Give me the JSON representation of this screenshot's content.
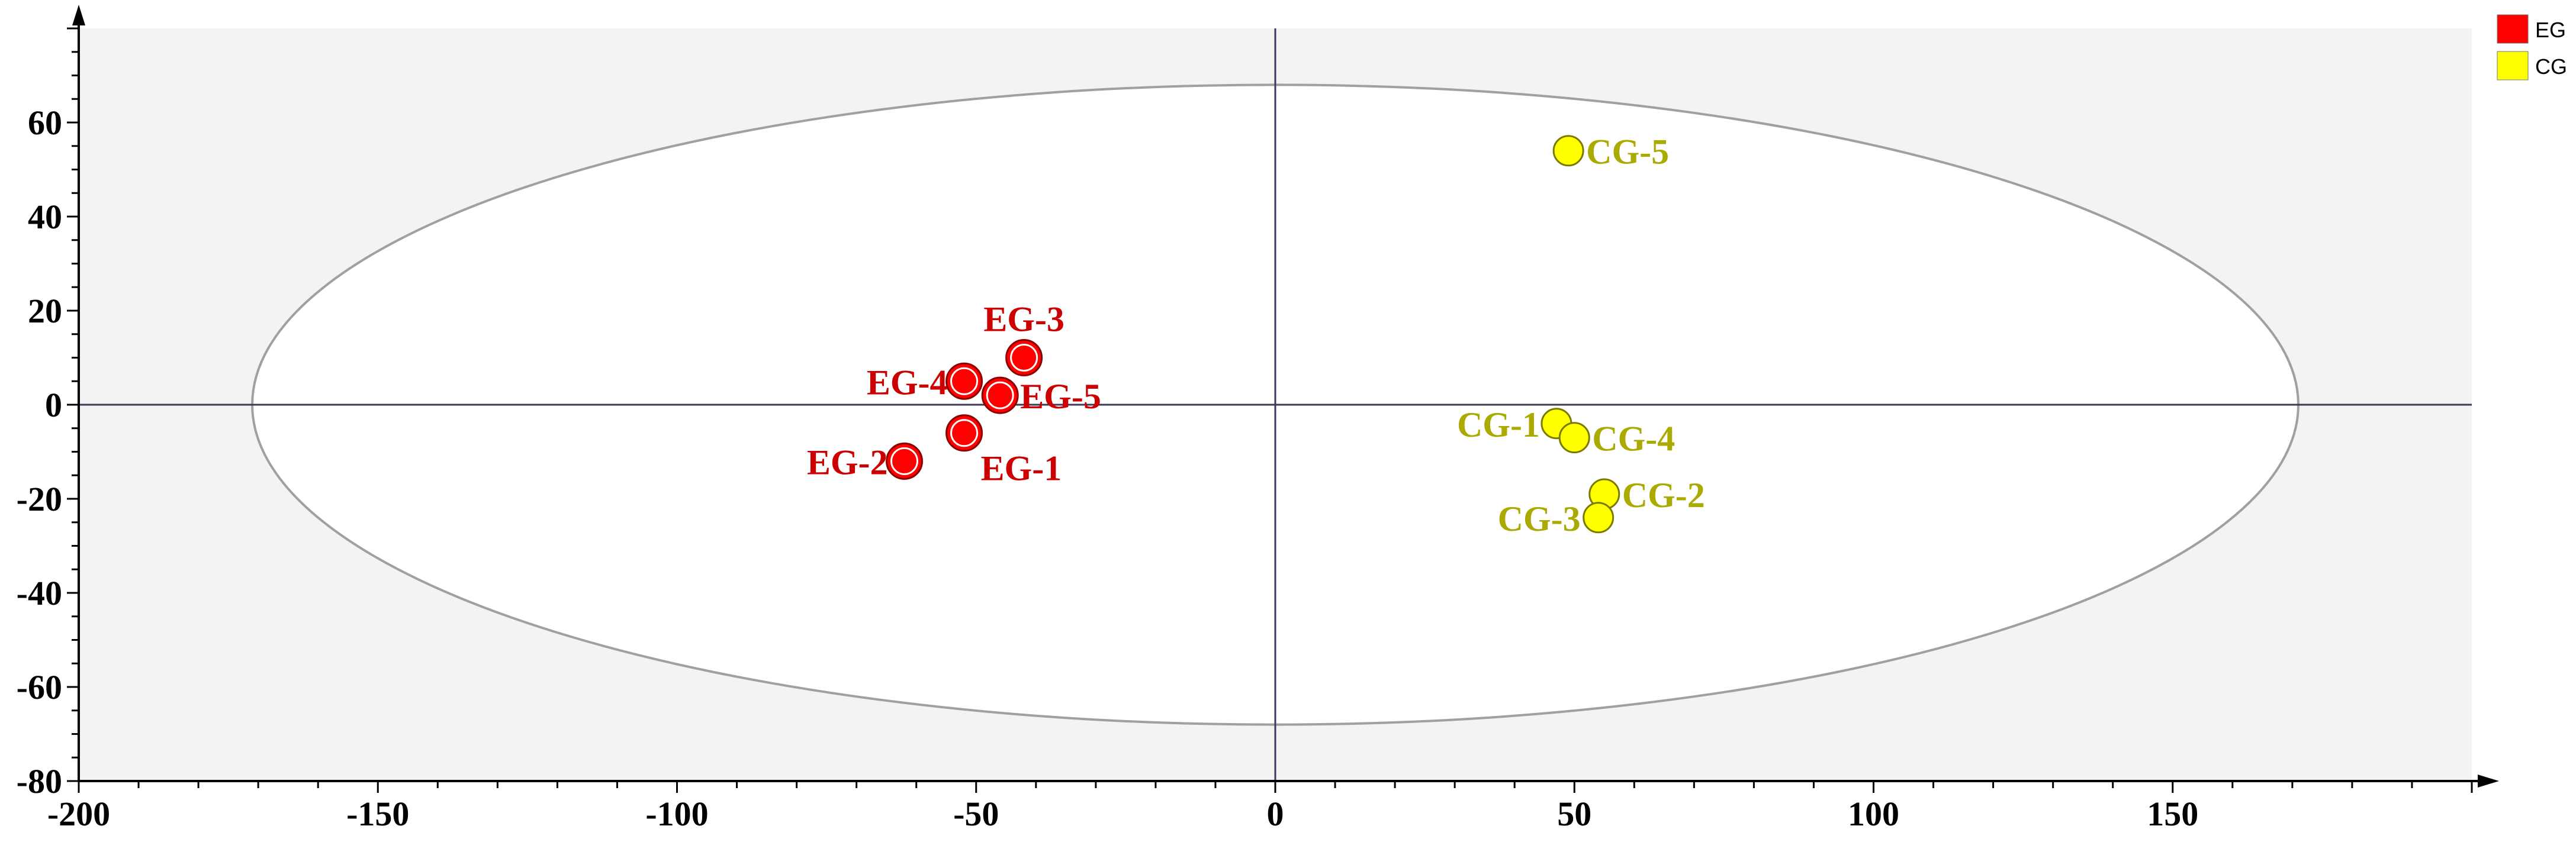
{
  "chart_data": {
    "type": "scatter",
    "title": "",
    "xlabel": "",
    "ylabel": "",
    "xlim": [
      -200,
      200
    ],
    "ylim": [
      -80,
      80
    ],
    "x_ticks": [
      -200,
      -150,
      -100,
      -50,
      0,
      50,
      100,
      150
    ],
    "y_ticks": [
      -80,
      -60,
      -40,
      -20,
      0,
      20,
      40,
      60
    ],
    "grid": false,
    "legend_position": "top-right",
    "confidence_ellipse": {
      "center": [
        0,
        0
      ],
      "semi_axis_x": 171,
      "semi_axis_y": 68
    },
    "series": [
      {
        "name": "EG",
        "color": "#ff0000",
        "label_color": "#cc0000",
        "points": [
          {
            "label": "EG-1",
            "x": -52,
            "y": -6
          },
          {
            "label": "EG-2",
            "x": -62,
            "y": -12
          },
          {
            "label": "EG-3",
            "x": -42,
            "y": 10
          },
          {
            "label": "EG-4",
            "x": -52,
            "y": 5
          },
          {
            "label": "EG-5",
            "x": -46,
            "y": 2
          }
        ]
      },
      {
        "name": "CG",
        "color": "#ffff00",
        "label_color": "#aaaa00",
        "points": [
          {
            "label": "CG-1",
            "x": 47,
            "y": -4
          },
          {
            "label": "CG-2",
            "x": 55,
            "y": -19
          },
          {
            "label": "CG-3",
            "x": 54,
            "y": -24
          },
          {
            "label": "CG-4",
            "x": 50,
            "y": -7
          },
          {
            "label": "CG-5",
            "x": 49,
            "y": 54
          }
        ]
      }
    ]
  }
}
